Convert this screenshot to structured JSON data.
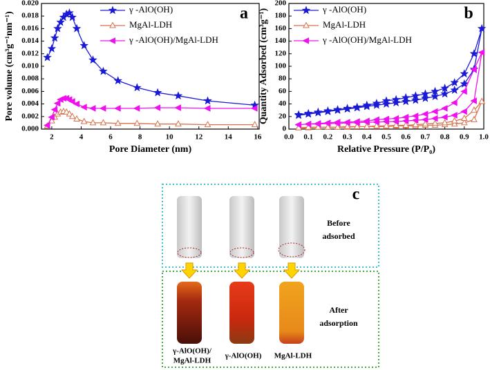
{
  "chart_data": [
    {
      "type": "line",
      "panel": "a",
      "xlabel": "Pore Diameter (nm)",
      "ylabel": "Pore volume (cm³g⁻¹nm⁻¹)",
      "x": [
        1.7,
        2.0,
        2.2,
        2.4,
        2.6,
        2.8,
        3.0,
        3.2,
        3.4,
        3.7,
        4.2,
        4.8,
        5.5,
        6.5,
        7.8,
        9.2,
        10.6,
        12.6,
        15.8
      ],
      "xlim": [
        1.3,
        16.1
      ],
      "xticks": [
        2,
        4,
        6,
        8,
        10,
        12,
        14,
        16
      ],
      "ylim": [
        0,
        0.02
      ],
      "yticks": [
        {
          "value": 0,
          "label": "0.000"
        },
        0.002,
        0.004,
        0.006,
        0.008,
        {
          "value": 0.01,
          "label": "0.010"
        },
        0.012,
        0.014,
        0.016,
        0.018,
        {
          "value": 0.02,
          "label": "0.020"
        }
      ],
      "legend": "upper right",
      "series": [
        {
          "name": "γ -AlO(OH)",
          "color": "#1a1ad6",
          "marker": "star",
          "values": [
            0.0114,
            0.0128,
            0.0145,
            0.016,
            0.017,
            0.0178,
            0.0183,
            0.0185,
            0.0178,
            0.016,
            0.0133,
            0.011,
            0.0092,
            0.0077,
            0.0066,
            0.0058,
            0.0053,
            0.0045,
            0.0038
          ]
        },
        {
          "name": "MgAl-LDH",
          "color": "#d9704a",
          "marker": "open-triangle",
          "values": [
            0.0005,
            0.0013,
            0.0019,
            0.0024,
            0.0027,
            0.0028,
            0.0027,
            0.0024,
            0.002,
            0.0016,
            0.0012,
            0.001,
            0.001,
            0.0009,
            0.0009,
            0.0008,
            0.0008,
            0.0007,
            0.0007
          ]
        },
        {
          "name": "γ -AlO(OH)/MgAl-LDH",
          "color": "#ee10ee",
          "marker": "left-triangle",
          "values": [
            0.0006,
            0.0019,
            0.0031,
            0.0041,
            0.0047,
            0.0049,
            0.0049,
            0.0047,
            0.0044,
            0.004,
            0.0035,
            0.0033,
            0.0033,
            0.0033,
            0.0033,
            0.0034,
            0.0034,
            0.0033,
            0.0033
          ]
        }
      ]
    },
    {
      "type": "line",
      "panel": "b",
      "xlabel": "Relative Pressure (P/P₀)",
      "ylabel": "Quantity Adsorbed (cm³g⁻¹)",
      "x": [
        0.05,
        0.1,
        0.15,
        0.2,
        0.25,
        0.3,
        0.35,
        0.4,
        0.45,
        0.5,
        0.55,
        0.6,
        0.65,
        0.7,
        0.75,
        0.8,
        0.85,
        0.9,
        0.95,
        0.99,
        0.95,
        0.9,
        0.85,
        0.8,
        0.75,
        0.7,
        0.65,
        0.6,
        0.55,
        0.5,
        0.45,
        0.4,
        0.35,
        0.3,
        0.25,
        0.2,
        0.15,
        0.1,
        0.05
      ],
      "xlim": [
        0,
        1
      ],
      "xticks": [
        {
          "value": 0,
          "label": "0.0"
        },
        0.1,
        0.2,
        0.3,
        0.4,
        0.5,
        0.6,
        0.7,
        0.8,
        0.9,
        {
          "value": 1,
          "label": "1.0"
        }
      ],
      "ylim": [
        0,
        200
      ],
      "yticks": [
        0,
        20,
        40,
        60,
        80,
        100,
        120,
        140,
        160,
        180,
        200
      ],
      "legend": "upper left",
      "series": [
        {
          "name": "γ -AlO(OH)",
          "color": "#1a1ad6",
          "marker": "star",
          "values": [
            22,
            24,
            26,
            28,
            30,
            32,
            34,
            36,
            38,
            40,
            42,
            44,
            46,
            49,
            52,
            56,
            62,
            72,
            95,
            160,
            120,
            88,
            74,
            65,
            60,
            56,
            53,
            50,
            47,
            45,
            41,
            38,
            35,
            33,
            31,
            29,
            27,
            25,
            23
          ]
        },
        {
          "name": "MgAl-LDH",
          "color": "#d9704a",
          "marker": "open-triangle",
          "values": [
            2,
            2,
            3,
            3,
            3,
            3,
            4,
            4,
            4,
            4,
            5,
            5,
            5,
            6,
            6,
            7,
            8,
            10,
            15,
            44,
            30,
            17,
            13,
            10,
            9,
            8,
            7,
            6,
            6,
            5,
            5,
            4,
            4,
            4,
            3,
            3,
            3,
            3,
            2
          ]
        },
        {
          "name": "γ -AlO(OH)/MgAl-LDH",
          "color": "#ee10ee",
          "marker": "left-triangle",
          "values": [
            7,
            8,
            8,
            9,
            9,
            10,
            10,
            11,
            11,
            12,
            12,
            13,
            14,
            15,
            17,
            19,
            22,
            28,
            45,
            122,
            95,
            60,
            42,
            33,
            28,
            24,
            21,
            19,
            17,
            16,
            15,
            13,
            12,
            11,
            11,
            10,
            9,
            8,
            7
          ]
        }
      ]
    }
  ],
  "panel_c": {
    "letter": "c",
    "before": [
      "Before",
      "adsorbed"
    ],
    "after": [
      "After",
      "adsorption"
    ],
    "samples": [
      [
        "γ-AlO(OH)/",
        "MgAl-LDH"
      ],
      [
        "γ-AlO(OH)"
      ],
      [
        "MgAl-LDH"
      ]
    ]
  }
}
